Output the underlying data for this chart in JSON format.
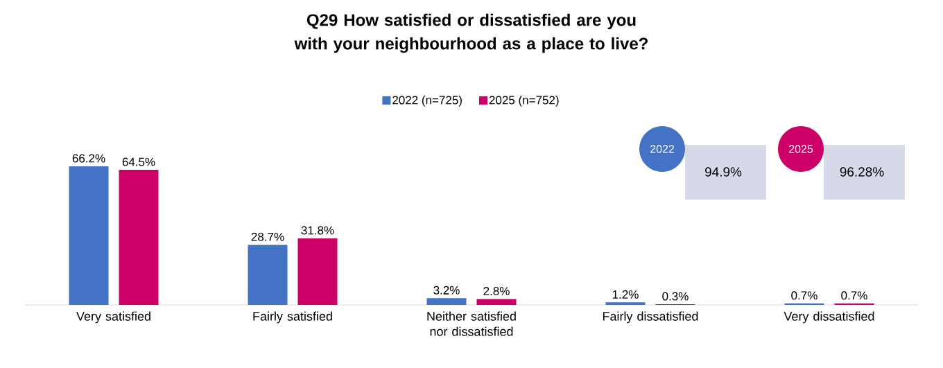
{
  "chart_data": {
    "type": "bar",
    "title": "Q29 How satisfied or dissatisfied are you with your neighbourhood as a place to live?",
    "categories": [
      "Very satisfied",
      "Fairly satisfied",
      "Neither satisfied nor dissatisfied",
      "Fairly dissatisfied",
      "Very dissatisfied"
    ],
    "series": [
      {
        "name": "2022 (n=725)",
        "color": "#4472c4",
        "values": [
          66.2,
          28.7,
          3.2,
          1.2,
          0.7
        ],
        "value_labels": [
          "66.2%",
          "28.7%",
          "3.2%",
          "1.2%",
          "0.7%"
        ]
      },
      {
        "name": "2025 (n=752)",
        "color": "#cc0066",
        "values": [
          64.5,
          31.8,
          2.8,
          0.3,
          0.7
        ],
        "value_labels": [
          "64.5%",
          "31.8%",
          "2.8%",
          "0.3%",
          "0.7%"
        ]
      }
    ],
    "annotations": [
      "2022",
      "94.9%",
      "2025",
      "96.28%"
    ],
    "legend": "top",
    "grid": false
  }
}
